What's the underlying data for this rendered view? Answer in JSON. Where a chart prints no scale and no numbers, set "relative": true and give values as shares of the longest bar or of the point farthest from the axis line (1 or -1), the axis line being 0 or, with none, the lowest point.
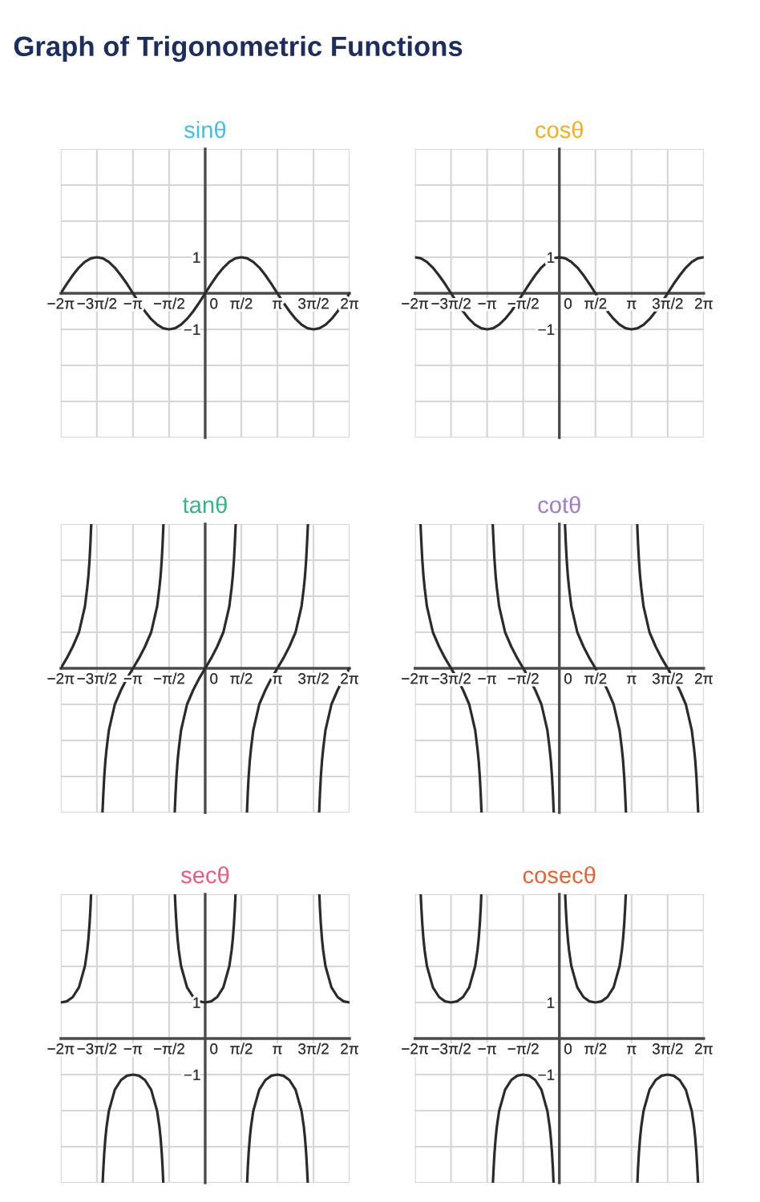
{
  "chart_data": [
    {
      "type": "other",
      "title": "Graph of Trigonometric Functions"
    },
    {
      "type": "line",
      "title": "sinθ",
      "xlim": [
        -6.28,
        6.28
      ],
      "ylim": [
        -4,
        4
      ],
      "grid": true,
      "xticks": [
        {
          "value": -6.28,
          "label": "−2π"
        },
        {
          "value": -4.71,
          "label": "−3π/2"
        },
        {
          "value": -3.14,
          "label": "−π"
        },
        {
          "value": -1.57,
          "label": "−π/2"
        },
        0,
        {
          "value": 1.57,
          "label": "π/2"
        },
        {
          "value": 3.14,
          "label": "π"
        },
        {
          "value": 4.71,
          "label": "3π/2"
        },
        {
          "value": 6.28,
          "label": "2π"
        }
      ],
      "yticks": [
        {
          "value": -4,
          "label": null
        },
        {
          "value": -3,
          "label": null
        },
        {
          "value": -2,
          "label": null
        },
        {
          "value": -1,
          "label": "−1"
        },
        {
          "value": 0,
          "label": null
        },
        1,
        {
          "value": 2,
          "label": null
        },
        {
          "value": 3,
          "label": null
        },
        {
          "value": 4,
          "label": null
        }
      ],
      "x": [
        -6.28,
        -6.02,
        -5.76,
        -5.5,
        -5.24,
        -4.97,
        -4.71,
        -4.45,
        -4.19,
        -3.93,
        -3.67,
        -3.4,
        -3.14,
        -2.88,
        -2.62,
        -2.36,
        -2.09,
        -1.83,
        -1.57,
        -1.31,
        -1.05,
        -0.79,
        -0.52,
        -0.26,
        0,
        0.26,
        0.52,
        0.79,
        1.05,
        1.31,
        1.57,
        1.83,
        2.09,
        2.36,
        2.62,
        2.88,
        3.14,
        3.4,
        3.67,
        3.93,
        4.19,
        4.45,
        4.71,
        4.97,
        5.24,
        5.5,
        5.76,
        6.02,
        6.28
      ],
      "series": [
        {
          "color": "#2b2b2b",
          "values": [
            0,
            0.26,
            0.5,
            0.71,
            0.87,
            0.97,
            1,
            0.97,
            0.87,
            0.71,
            0.5,
            0.26,
            0,
            -0.26,
            -0.5,
            -0.71,
            -0.87,
            -0.97,
            -1,
            -0.97,
            -0.87,
            -0.71,
            -0.5,
            -0.26,
            0,
            0.26,
            0.5,
            0.71,
            0.87,
            0.97,
            1,
            0.97,
            0.87,
            0.71,
            0.5,
            0.26,
            0,
            -0.26,
            -0.5,
            -0.71,
            -0.87,
            -0.97,
            -1,
            -0.97,
            -0.87,
            -0.71,
            -0.5,
            -0.26,
            0
          ]
        }
      ]
    },
    {
      "type": "line",
      "title": "cosθ",
      "xlim": [
        -6.28,
        6.28
      ],
      "ylim": [
        -4,
        4
      ],
      "grid": true,
      "xticks": [
        {
          "value": -6.28,
          "label": "−2π"
        },
        {
          "value": -4.71,
          "label": "−3π/2"
        },
        {
          "value": -3.14,
          "label": "−π"
        },
        {
          "value": -1.57,
          "label": "−π/2"
        },
        0,
        {
          "value": 1.57,
          "label": "π/2"
        },
        {
          "value": 3.14,
          "label": "π"
        },
        {
          "value": 4.71,
          "label": "3π/2"
        },
        {
          "value": 6.28,
          "label": "2π"
        }
      ],
      "yticks": [
        {
          "value": -4,
          "label": null
        },
        {
          "value": -3,
          "label": null
        },
        {
          "value": -2,
          "label": null
        },
        {
          "value": -1,
          "label": "−1"
        },
        {
          "value": 0,
          "label": null
        },
        1,
        {
          "value": 2,
          "label": null
        },
        {
          "value": 3,
          "label": null
        },
        {
          "value": 4,
          "label": null
        }
      ],
      "x": [
        -6.28,
        -6.02,
        -5.76,
        -5.5,
        -5.24,
        -4.97,
        -4.71,
        -4.45,
        -4.19,
        -3.93,
        -3.67,
        -3.4,
        -3.14,
        -2.88,
        -2.62,
        -2.36,
        -2.09,
        -1.83,
        -1.57,
        -1.31,
        -1.05,
        -0.79,
        -0.52,
        -0.26,
        0,
        0.26,
        0.52,
        0.79,
        1.05,
        1.31,
        1.57,
        1.83,
        2.09,
        2.36,
        2.62,
        2.88,
        3.14,
        3.4,
        3.67,
        3.93,
        4.19,
        4.45,
        4.71,
        4.97,
        5.24,
        5.5,
        5.76,
        6.02,
        6.28
      ],
      "series": [
        {
          "color": "#2b2b2b",
          "values": [
            1,
            0.97,
            0.87,
            0.71,
            0.5,
            0.26,
            0,
            -0.26,
            -0.5,
            -0.71,
            -0.87,
            -0.97,
            -1,
            -0.97,
            -0.87,
            -0.71,
            -0.5,
            -0.26,
            0,
            0.26,
            0.5,
            0.71,
            0.87,
            0.97,
            1,
            0.97,
            0.87,
            0.71,
            0.5,
            0.26,
            0,
            -0.26,
            -0.5,
            -0.71,
            -0.87,
            -0.97,
            -1,
            -0.97,
            -0.87,
            -0.71,
            -0.5,
            -0.26,
            0,
            0.26,
            0.5,
            0.71,
            0.87,
            0.97,
            1
          ]
        }
      ]
    },
    {
      "type": "line",
      "title": "tanθ",
      "relative": true,
      "xlim": [
        -6.28,
        6.28
      ],
      "grid": true,
      "xticks": [
        {
          "value": -6.28,
          "label": "−2π"
        },
        {
          "value": -4.71,
          "label": "−3π/2"
        },
        {
          "value": -3.14,
          "label": "−π"
        },
        {
          "value": -1.57,
          "label": "−π/2"
        },
        0,
        {
          "value": 1.57,
          "label": "π/2"
        },
        {
          "value": 3.14,
          "label": "π"
        },
        {
          "value": 4.71,
          "label": "3π/2"
        },
        {
          "value": 6.28,
          "label": "2π"
        }
      ],
      "series": [
        {
          "color": "#2b2b2b",
          "x": [
            -6.28,
            -6.02,
            -5.76,
            -5.49,
            -5.23,
            -5.13,
            -5.08,
            -5.03,
            -4.99,
            -4.957,
            -4.71,
            -4.468,
            -4.43,
            -4.39,
            -4.34,
            -4.29,
            -4.19,
            -3.93,
            -3.66,
            -3.4,
            -3.14,
            -2.88,
            -2.62,
            -2.35,
            -2.09,
            -1.99,
            -1.94,
            -1.89,
            -1.85,
            -1.816,
            -1.57,
            -1.326,
            -1.29,
            -1.25,
            -1.2,
            -1.15,
            -1.05,
            -0.79,
            -0.52,
            -0.26,
            0,
            0.26,
            0.52,
            0.79,
            1.05,
            1.15,
            1.2,
            1.25,
            1.29,
            1.326,
            1.57,
            1.816,
            1.85,
            1.89,
            1.94,
            1.99,
            2.09,
            2.35,
            2.62,
            2.88,
            3.14,
            3.4,
            3.66,
            3.93,
            4.19,
            4.29,
            4.34,
            4.39,
            4.43,
            4.468,
            4.71,
            4.957,
            4.99,
            5.03,
            5.08,
            5.13,
            5.23,
            5.49,
            5.76,
            6.02,
            6.28
          ],
          "values": [
            0,
            0.07,
            0.15,
            0.25,
            0.43,
            0.56,
            0.64,
            0.75,
            0.87,
            1,
            null,
            -1,
            -0.87,
            -0.75,
            -0.64,
            -0.56,
            -0.43,
            -0.25,
            -0.15,
            -0.07,
            0,
            0.07,
            0.15,
            0.25,
            0.43,
            0.56,
            0.64,
            0.75,
            0.87,
            1,
            null,
            -1,
            -0.87,
            -0.75,
            -0.64,
            -0.56,
            -0.43,
            -0.25,
            -0.15,
            -0.07,
            0,
            0.07,
            0.15,
            0.25,
            0.43,
            0.56,
            0.64,
            0.75,
            0.87,
            1,
            null,
            -1,
            -0.87,
            -0.75,
            -0.64,
            -0.56,
            -0.43,
            -0.25,
            -0.15,
            -0.07,
            0,
            0.07,
            0.15,
            0.25,
            0.43,
            0.56,
            0.64,
            0.75,
            0.87,
            1,
            null,
            -1,
            -0.87,
            -0.75,
            -0.64,
            -0.56,
            -0.43,
            -0.25,
            -0.15,
            -0.07,
            0
          ]
        }
      ]
    },
    {
      "type": "line",
      "title": "cotθ",
      "relative": true,
      "xlim": [
        -6.28,
        6.28
      ],
      "grid": true,
      "xticks": [
        {
          "value": -6.28,
          "label": "−2π"
        },
        {
          "value": -4.71,
          "label": "−3π/2"
        },
        {
          "value": -3.14,
          "label": "−π"
        },
        {
          "value": -1.57,
          "label": "−π/2"
        },
        0,
        {
          "value": 1.57,
          "label": "π/2"
        },
        {
          "value": 3.14,
          "label": "π"
        },
        {
          "value": 4.71,
          "label": "3π/2"
        },
        {
          "value": 6.28,
          "label": "2π"
        }
      ],
      "series": [
        {
          "color": "#2b2b2b",
          "x": [
            -6.038,
            -6.0,
            -5.96,
            -5.91,
            -5.86,
            -5.76,
            -5.5,
            -5.23,
            -4.97,
            -4.71,
            -4.45,
            -4.19,
            -3.92,
            -3.66,
            -3.56,
            -3.51,
            -3.46,
            -3.42,
            -3.386,
            -3.14,
            -2.897,
            -2.86,
            -2.82,
            -2.77,
            -2.72,
            -2.62,
            -2.36,
            -2.09,
            -1.83,
            -1.57,
            -1.31,
            -1.05,
            -0.78,
            -0.52,
            -0.42,
            -0.37,
            -0.32,
            -0.28,
            -0.245,
            0,
            0.245,
            0.28,
            0.32,
            0.37,
            0.42,
            0.52,
            0.78,
            1.05,
            1.31,
            1.57,
            1.83,
            2.09,
            2.36,
            2.62,
            2.72,
            2.77,
            2.82,
            2.86,
            2.897,
            3.14,
            3.386,
            3.42,
            3.46,
            3.51,
            3.56,
            3.66,
            3.92,
            4.19,
            4.45,
            4.71,
            4.97,
            5.23,
            5.5,
            5.76,
            5.86,
            5.91,
            5.96,
            6.0,
            6.038
          ],
          "values": [
            1,
            0.87,
            0.75,
            0.64,
            0.56,
            0.43,
            0.25,
            0.15,
            0.07,
            0,
            -0.07,
            -0.15,
            -0.25,
            -0.43,
            -0.56,
            -0.64,
            -0.75,
            -0.87,
            -1,
            null,
            1,
            0.87,
            0.75,
            0.64,
            0.56,
            0.43,
            0.25,
            0.15,
            0.07,
            0,
            -0.07,
            -0.15,
            -0.25,
            -0.43,
            -0.56,
            -0.64,
            -0.75,
            -0.87,
            -1,
            null,
            1,
            0.87,
            0.75,
            0.64,
            0.56,
            0.43,
            0.25,
            0.15,
            0.07,
            0,
            -0.07,
            -0.15,
            -0.25,
            -0.43,
            -0.56,
            -0.64,
            -0.75,
            -0.87,
            -1,
            null,
            1,
            0.87,
            0.75,
            0.64,
            0.56,
            0.43,
            0.25,
            0.15,
            0.07,
            0,
            -0.07,
            -0.15,
            -0.25,
            -0.43,
            -0.56,
            -0.64,
            -0.75,
            -0.87,
            -1
          ]
        }
      ]
    },
    {
      "type": "line",
      "title": "secθ",
      "xlim": [
        -6.28,
        6.28
      ],
      "ylim": [
        -4,
        4
      ],
      "grid": true,
      "xticks": [
        {
          "value": -6.28,
          "label": "−2π"
        },
        {
          "value": -4.71,
          "label": "−3π/2"
        },
        {
          "value": -3.14,
          "label": "−π"
        },
        {
          "value": -1.57,
          "label": "−π/2"
        },
        0,
        {
          "value": 1.57,
          "label": "π/2"
        },
        {
          "value": 3.14,
          "label": "π"
        },
        {
          "value": 4.71,
          "label": "3π/2"
        },
        {
          "value": 6.28,
          "label": "2π"
        }
      ],
      "yticks": [
        {
          "value": -4,
          "label": null
        },
        {
          "value": -3,
          "label": null
        },
        {
          "value": -2,
          "label": null
        },
        {
          "value": -1,
          "label": "−1"
        },
        {
          "value": 0,
          "label": null
        },
        1,
        {
          "value": 2,
          "label": null
        },
        {
          "value": 3,
          "label": null
        },
        {
          "value": 4,
          "label": null
        }
      ],
      "series": [
        {
          "color": "#2b2b2b",
          "x": [
            -6.28,
            -6.02,
            -5.76,
            -5.49,
            -5.23,
            -5.13,
            -5.08,
            -5.03,
            -4.99,
            -4.965,
            -4.71,
            -4.46,
            -4.43,
            -4.39,
            -4.34,
            -4.29,
            -4.19,
            -3.93,
            -3.66,
            -3.4,
            -3.14,
            -2.88,
            -2.62,
            -2.35,
            -2.09,
            -1.99,
            -1.94,
            -1.89,
            -1.85,
            -1.824,
            -1.57,
            -1.318,
            -1.29,
            -1.25,
            -1.2,
            -1.15,
            -1.05,
            -0.79,
            -0.52,
            -0.26,
            0,
            0.26,
            0.52,
            0.79,
            1.05,
            1.15,
            1.2,
            1.25,
            1.29,
            1.318,
            1.57,
            1.824,
            1.85,
            1.89,
            1.94,
            1.99,
            2.09,
            2.35,
            2.62,
            2.88,
            3.14,
            3.4,
            3.66,
            3.93,
            4.19,
            4.29,
            4.34,
            4.39,
            4.43,
            4.46,
            4.71,
            4.965,
            4.99,
            5.03,
            5.08,
            5.13,
            5.23,
            5.49,
            5.76,
            6.02,
            6.28
          ],
          "values": [
            1,
            1.03,
            1.15,
            1.42,
            2.01,
            2.45,
            2.76,
            3.17,
            3.61,
            4,
            null,
            -4,
            -3.61,
            -3.17,
            -2.76,
            -2.45,
            -2.01,
            -1.42,
            -1.15,
            -1.03,
            -1,
            -1.03,
            -1.15,
            -1.42,
            -2.01,
            -2.45,
            -2.76,
            -3.17,
            -3.61,
            -4,
            null,
            4,
            3.61,
            3.17,
            2.76,
            2.45,
            2.01,
            1.42,
            1.15,
            1.03,
            1,
            1.03,
            1.15,
            1.42,
            2.01,
            2.45,
            2.76,
            3.17,
            3.61,
            4,
            null,
            -4,
            -3.61,
            -3.17,
            -2.76,
            -2.45,
            -2.01,
            -1.42,
            -1.15,
            -1.03,
            -1,
            -1.03,
            -1.15,
            -1.42,
            -2.01,
            -2.45,
            -2.76,
            -3.17,
            -3.61,
            -4,
            null,
            4,
            3.61,
            3.17,
            2.76,
            2.45,
            2.01,
            1.42,
            1.15,
            1.03,
            1
          ]
        }
      ]
    },
    {
      "type": "line",
      "title": "cosecθ",
      "xlim": [
        -6.28,
        6.28
      ],
      "ylim": [
        -4,
        4
      ],
      "grid": true,
      "xticks": [
        {
          "value": -6.28,
          "label": "−2π"
        },
        {
          "value": -4.71,
          "label": "−3π/2"
        },
        {
          "value": -3.14,
          "label": "−π"
        },
        {
          "value": -1.57,
          "label": "−π/2"
        },
        0,
        {
          "value": 1.57,
          "label": "π/2"
        },
        {
          "value": 3.14,
          "label": "π"
        },
        {
          "value": 4.71,
          "label": "3π/2"
        },
        {
          "value": 6.28,
          "label": "2π"
        }
      ],
      "yticks": [
        {
          "value": -4,
          "label": null
        },
        {
          "value": -3,
          "label": null
        },
        {
          "value": -2,
          "label": null
        },
        {
          "value": -1,
          "label": "−1"
        },
        {
          "value": 0,
          "label": null
        },
        1,
        {
          "value": 2,
          "label": null
        },
        {
          "value": 3,
          "label": null
        },
        {
          "value": 4,
          "label": null
        }
      ],
      "series": [
        {
          "color": "#2b2b2b",
          "x": [
            -6.03,
            -6.0,
            -5.96,
            -5.91,
            -5.86,
            -5.76,
            -5.5,
            -5.23,
            -4.97,
            -4.71,
            -4.45,
            -4.19,
            -3.92,
            -3.66,
            -3.56,
            -3.51,
            -3.46,
            -3.42,
            -3.394,
            -3.14,
            -2.889,
            -2.86,
            -2.82,
            -2.77,
            -2.72,
            -2.62,
            -2.36,
            -2.09,
            -1.83,
            -1.57,
            -1.31,
            -1.05,
            -0.78,
            -0.52,
            -0.42,
            -0.37,
            -0.32,
            -0.28,
            -0.253,
            0,
            0.253,
            0.28,
            0.32,
            0.37,
            0.42,
            0.52,
            0.78,
            1.05,
            1.31,
            1.57,
            1.83,
            2.09,
            2.36,
            2.62,
            2.72,
            2.77,
            2.82,
            2.86,
            2.889,
            3.14,
            3.394,
            3.42,
            3.46,
            3.51,
            3.56,
            3.66,
            3.92,
            4.19,
            4.45,
            4.71,
            4.97,
            5.23,
            5.5,
            5.76,
            5.86,
            5.91,
            5.96,
            6.0,
            6.03
          ],
          "values": [
            4,
            3.61,
            3.17,
            2.76,
            2.45,
            2.01,
            1.42,
            1.15,
            1.03,
            1,
            1.03,
            1.15,
            1.42,
            2.01,
            2.45,
            2.76,
            3.17,
            3.61,
            4,
            null,
            -4,
            -3.61,
            -3.17,
            -2.76,
            -2.45,
            -2.01,
            -1.42,
            -1.15,
            -1.03,
            -1,
            -1.03,
            -1.15,
            -1.42,
            -2.01,
            -2.45,
            -2.76,
            -3.17,
            -3.61,
            -4,
            null,
            4,
            3.61,
            3.17,
            2.76,
            2.45,
            2.01,
            1.42,
            1.15,
            1.03,
            1,
            1.03,
            1.15,
            1.42,
            2.01,
            2.45,
            2.76,
            3.17,
            3.61,
            4,
            null,
            -4,
            -3.61,
            -3.17,
            -2.76,
            -2.45,
            -2.01,
            -1.42,
            -1.15,
            -1.03,
            -1,
            -1.03,
            -1.15,
            -1.42,
            -2.01,
            -2.45,
            -2.76,
            -3.17,
            -3.61,
            -4
          ]
        }
      ]
    }
  ]
}
